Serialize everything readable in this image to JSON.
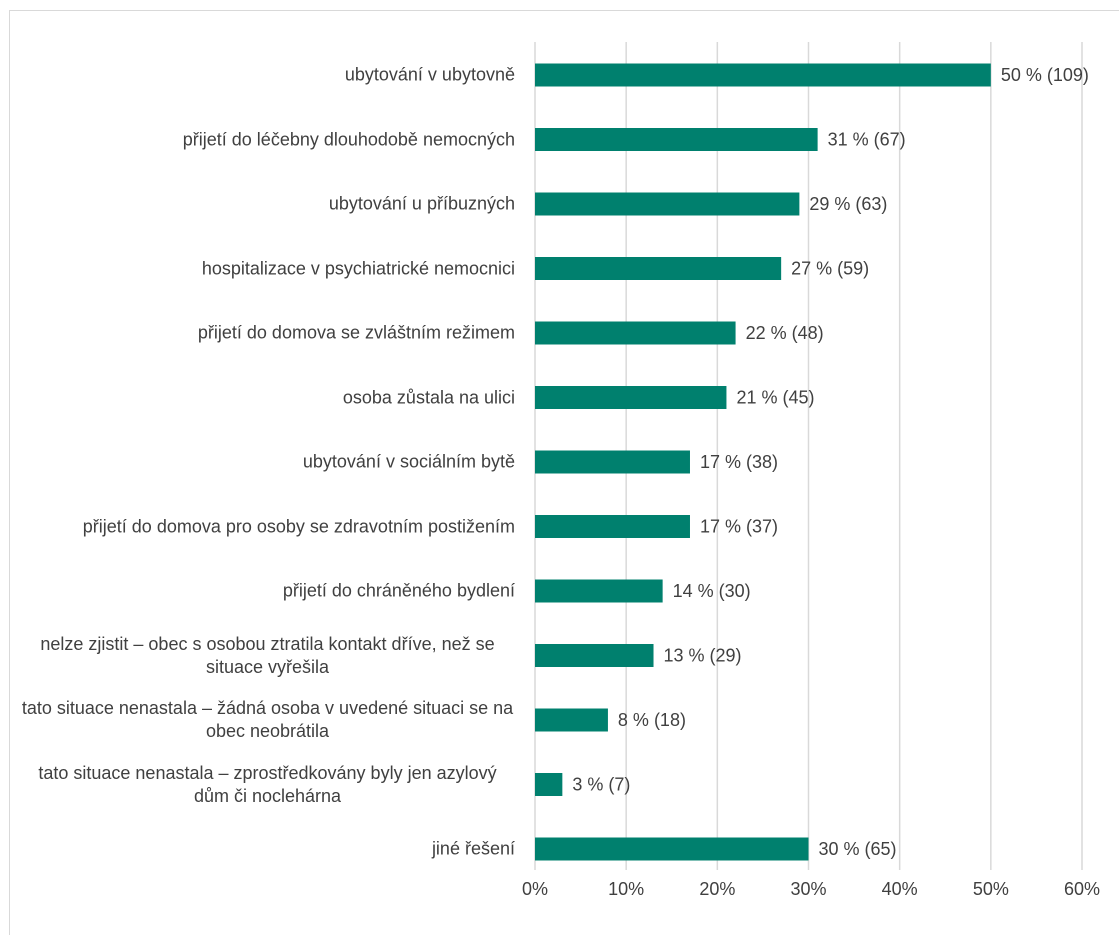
{
  "chart_data": {
    "type": "bar",
    "orientation": "horizontal",
    "categories": [
      "ubytování v ubytovně",
      "přijetí do léčebny dlouhodobě nemocných",
      "ubytování u příbuzných",
      "hospitalizace v psychiatrické nemocnici",
      "přijetí do domova se zvláštním režimem",
      "osoba zůstala na ulici",
      "ubytování v sociálním bytě",
      "přijetí do domova pro osoby se zdravotním postižením",
      "přijetí do chráněného bydlení",
      "nelze zjistit – obec s osobou ztratila kontakt dříve, než se situace vyřešila",
      "tato situace nenastala – žádná osoba v uvedené situaci se na obec neobrátila",
      "tato situace nenastala – zprostředkovány byly jen azylový dům či noclehárna",
      "jiné řešení"
    ],
    "values": [
      50,
      31,
      29,
      27,
      22,
      21,
      17,
      17,
      14,
      13,
      8,
      3,
      30
    ],
    "value_labels": [
      "50 % (109)",
      "31 % (67)",
      "29 % (63)",
      "27 % (59)",
      "22 % (48)",
      "21 % (45)",
      "17 % (38)",
      "17 % (37)",
      "14 % (30)",
      "13 % (29)",
      "8 % (18)",
      "3 % (7)",
      "30 % (65)"
    ],
    "color": "#00806e",
    "xlim": [
      0,
      60
    ],
    "xticks": [
      {
        "value": 0,
        "label": "0%"
      },
      {
        "value": 10,
        "label": "10%"
      },
      {
        "value": 20,
        "label": "20%"
      },
      {
        "value": 30,
        "label": "30%"
      },
      {
        "value": 40,
        "label": "40%"
      },
      {
        "value": 50,
        "label": "50%"
      },
      {
        "value": 60,
        "label": "60%"
      }
    ],
    "grid": true
  }
}
